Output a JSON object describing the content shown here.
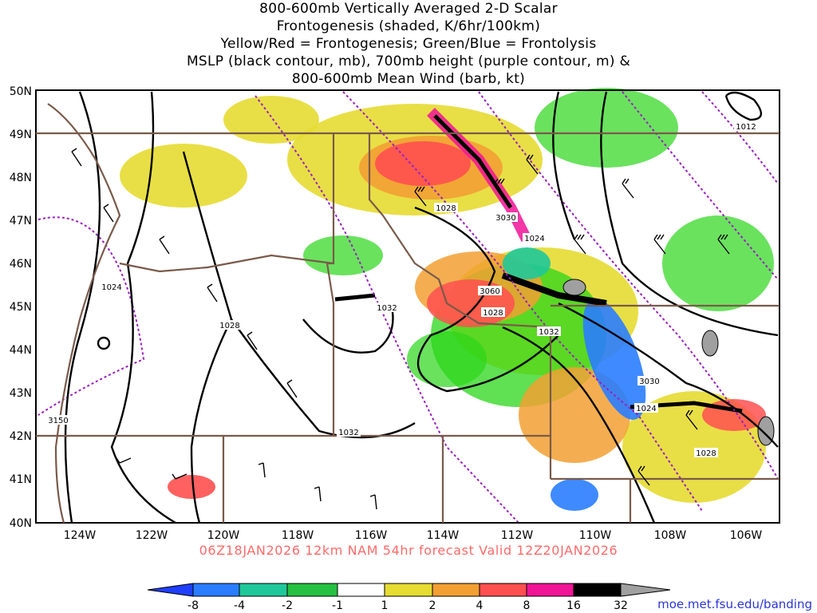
{
  "title": {
    "lines": [
      "800-600mb Vertically Averaged 2-D Scalar",
      "Frontogenesis (shaded, K/6hr/100km)",
      "Yellow/Red = Frontogenesis;  Green/Blue = Frontolysis",
      "MSLP (black contour, mb), 700mb height (purple contour, m) &",
      "800-600mb Mean Wind (barb, kt)"
    ]
  },
  "map": {
    "lat_labels": [
      "50N",
      "49N",
      "48N",
      "47N",
      "46N",
      "45N",
      "44N",
      "43N",
      "42N",
      "41N",
      "40N"
    ],
    "lon_labels": [
      "124W",
      "122W",
      "120W",
      "118W",
      "116W",
      "114W",
      "112W",
      "110W",
      "108W",
      "106W"
    ],
    "lat_range": [
      40,
      50
    ],
    "lon_range": [
      -125,
      -105
    ],
    "mslp_labels": [
      "1012",
      "1024",
      "1028",
      "1028",
      "1032",
      "1032",
      "1032",
      "1024",
      "1028",
      "1024",
      "1028"
    ],
    "height_labels": [
      "3030",
      "3060",
      "3030",
      "3150"
    ]
  },
  "colorbar": {
    "tick_labels": [
      "-8",
      "-4",
      "-2",
      "-1",
      "1",
      "2",
      "4",
      "8",
      "16",
      "32"
    ],
    "colors": {
      "lt_neg": "#1f3fff",
      "neg8": "#2a7dff",
      "neg4": "#1fc89a",
      "neg2": "#26c043",
      "neg1": "#2bd61a",
      "zero": "#ffffff",
      "pos1": "#e6dc32",
      "pos2": "#f2a033",
      "pos4": "#ff5050",
      "pos8": "#f01496",
      "pos16": "#000000",
      "gt32": "#a0a0a0"
    }
  },
  "footer": {
    "valid_text": "06Z18JAN2026 12km NAM 54hr forecast Valid 12Z20JAN2026",
    "credit": "moe.met.fsu.edu/banding"
  },
  "colors": {
    "state_border": "#7a5a4a",
    "mslp_contour": "#000000",
    "height_contour": "#9b1fc0"
  }
}
